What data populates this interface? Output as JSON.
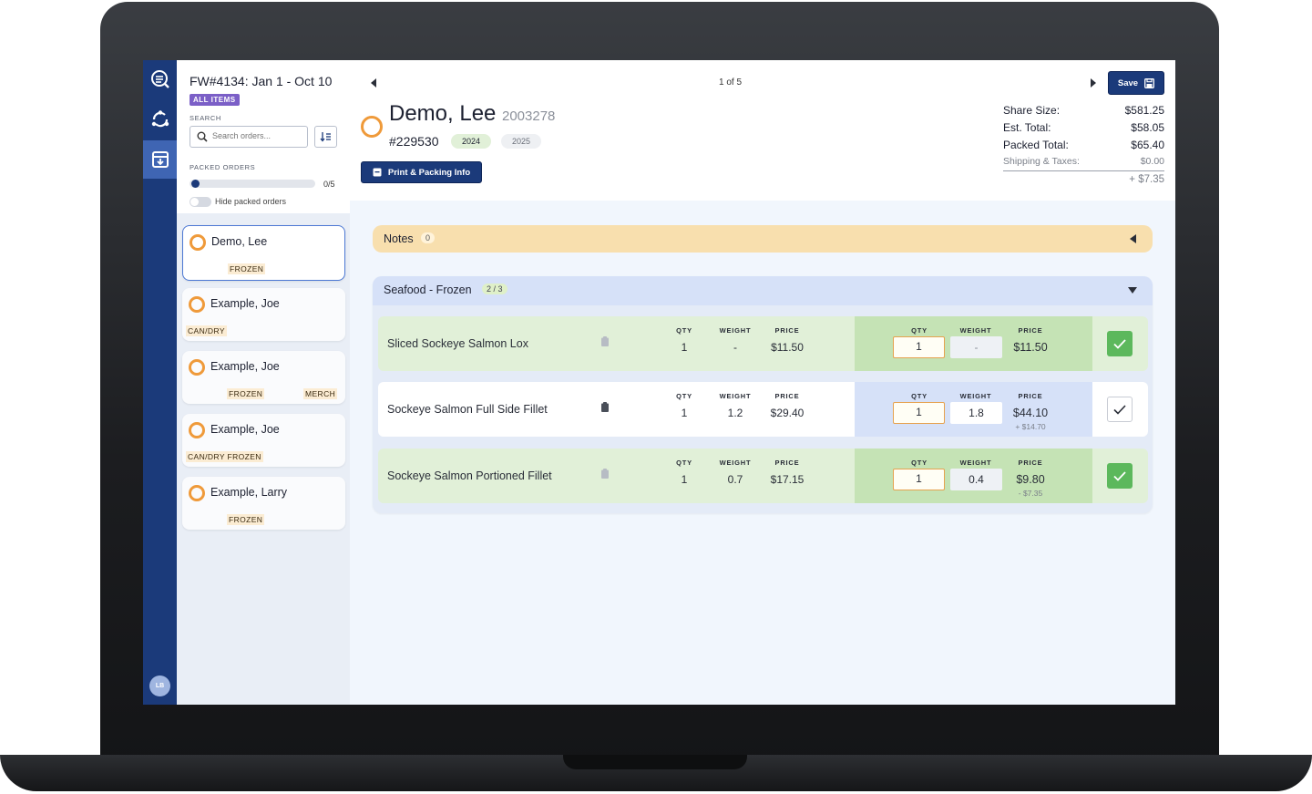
{
  "sidebar": {
    "batch_title": "FW#4134: Jan 1 - Oct 10",
    "all_items_badge": "ALL ITEMS",
    "search_label": "SEARCH",
    "search_placeholder": "Search orders...",
    "packed_label": "PACKED ORDERS",
    "packed_count": "0/5",
    "packed_progress": 0,
    "hide_packed_label": "Hide packed orders",
    "orders": [
      {
        "name": "Demo, Lee",
        "tags": [
          "FROZEN"
        ]
      },
      {
        "name": "Example, Joe",
        "tags": [
          "CAN/DRY"
        ]
      },
      {
        "name": "Example, Joe",
        "tags": [
          "FROZEN",
          "MERCH"
        ]
      },
      {
        "name": "Example, Joe",
        "tags": [
          "CAN/DRY FROZEN"
        ]
      },
      {
        "name": "Example, Larry",
        "tags": [
          "FROZEN"
        ]
      }
    ],
    "avatar_initials": "LB"
  },
  "header": {
    "pager": "1 of 5",
    "save_label": "Save",
    "customer_name": "Demo, Lee",
    "customer_id": "2003278",
    "order_number": "#229530",
    "years": [
      "2024",
      "2025"
    ],
    "print_label": "Print & Packing Info",
    "totals": {
      "share_size_label": "Share Size:",
      "share_size": "$581.25",
      "est_total_label": "Est. Total:",
      "est_total": "$58.05",
      "packed_total_label": "Packed Total:",
      "packed_total": "$65.40",
      "shipping_label": "Shipping & Taxes:",
      "shipping": "$0.00",
      "adjustment": "+ $7.35"
    }
  },
  "notes": {
    "label": "Notes",
    "count": "0"
  },
  "section": {
    "title": "Seafood - Frozen",
    "progress": "2 / 3",
    "col_qty": "QTY",
    "col_weight": "WEIGHT",
    "col_price": "PRICE",
    "items": [
      {
        "name": "Sliced Sockeye Salmon Lox",
        "qty": "1",
        "weight": "-",
        "price": "$11.50",
        "packed_qty": "1",
        "packed_weight": "-",
        "packed_price": "$11.50",
        "diff": "",
        "packed": true
      },
      {
        "name": "Sockeye Salmon Full Side Fillet",
        "qty": "1",
        "weight": "1.2",
        "price": "$29.40",
        "packed_qty": "1",
        "packed_weight": "1.8",
        "packed_price": "$44.10",
        "diff": "+ $14.70",
        "packed": false
      },
      {
        "name": "Sockeye Salmon Portioned Fillet",
        "qty": "1",
        "weight": "0.7",
        "price": "$17.15",
        "packed_qty": "1",
        "packed_weight": "0.4",
        "packed_price": "$9.80",
        "diff": "- $7.35",
        "packed": true
      }
    ]
  },
  "colors": {
    "rail": "#1b3a7a",
    "accent_orange": "#ef9a3a",
    "packed_green": "#c5e3b5",
    "check_green": "#5cb85c",
    "notes_yellow": "#f8dfae"
  }
}
